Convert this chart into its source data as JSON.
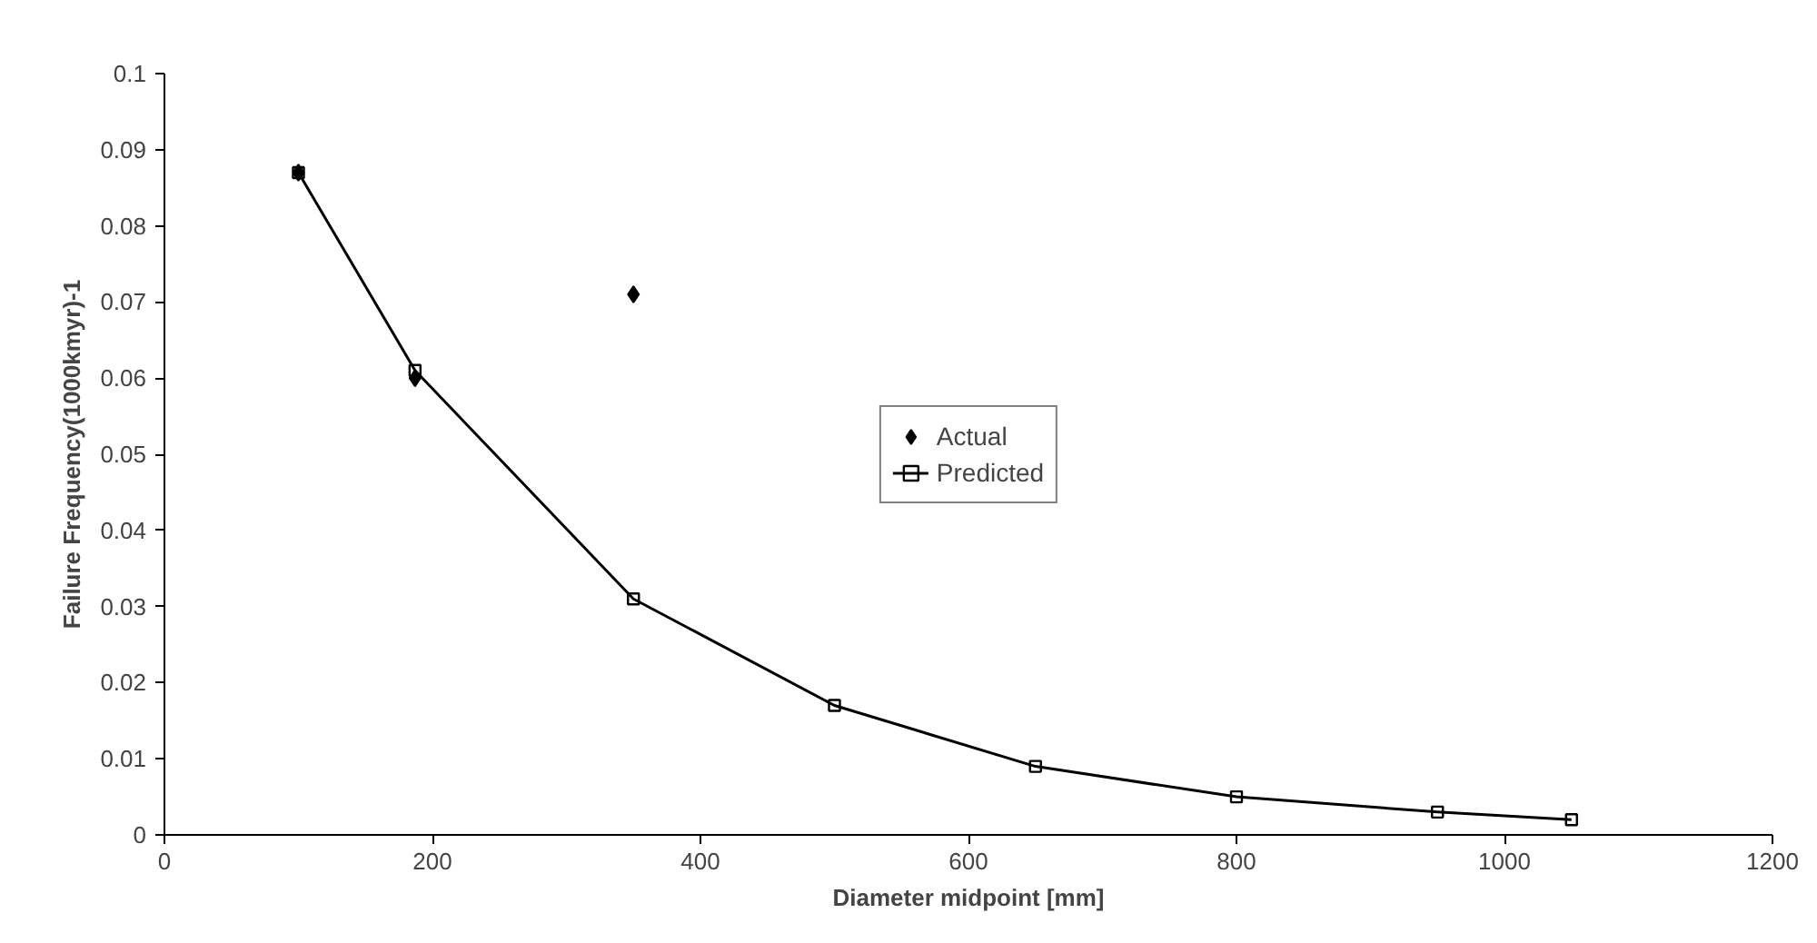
{
  "chart_data": {
    "type": "scatter",
    "xlabel": "Diameter midpoint [mm]",
    "ylabel": "Failure Frequency(1000kmyr)-1",
    "xlim": [
      0,
      1200
    ],
    "xticks": [
      0,
      200,
      400,
      600,
      800,
      1000,
      1200
    ],
    "ylim": [
      0,
      0.1
    ],
    "yticks": [
      0,
      0.01,
      0.02,
      0.03,
      0.04,
      0.05,
      0.06,
      0.07,
      0.08,
      0.09,
      0.1
    ],
    "grid": false,
    "legend": "center",
    "series": [
      {
        "name": "Actual",
        "marker": "diamond",
        "color": "#000000",
        "x": [
          100,
          187,
          350
        ],
        "values": [
          0.087,
          0.06,
          0.071
        ]
      },
      {
        "name": "Predicted",
        "type": "line",
        "marker": "square",
        "line_style": "solid",
        "color": "#000000",
        "x": [
          100,
          187,
          350,
          500,
          650,
          800,
          950,
          1050
        ],
        "values": [
          0.087,
          0.061,
          0.031,
          0.017,
          0.009,
          0.005,
          0.003,
          0.002
        ]
      }
    ]
  }
}
